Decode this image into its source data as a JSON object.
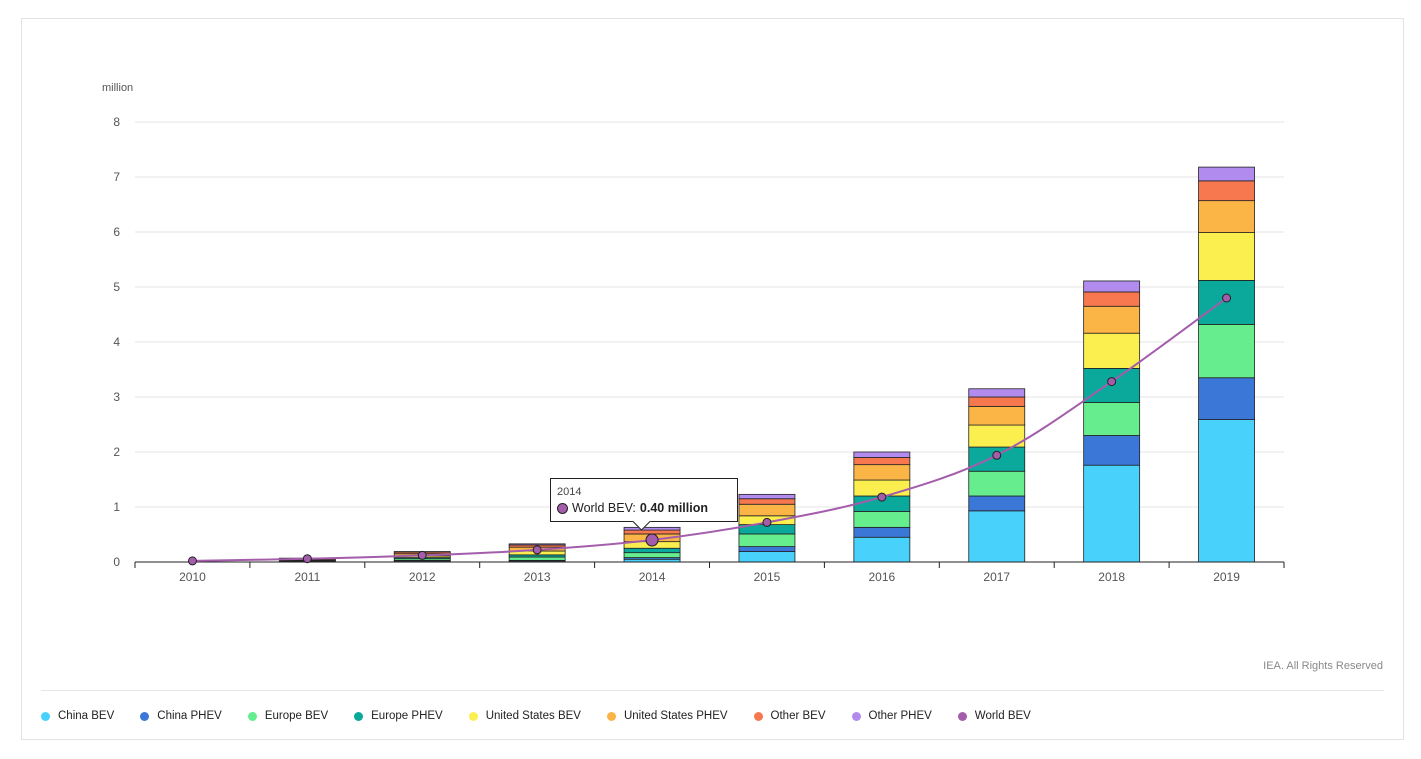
{
  "chart_data": {
    "type": "bar",
    "stacked": true,
    "ylabel": "million",
    "ylim": [
      0,
      8
    ],
    "yticks": [
      0,
      1,
      2,
      3,
      4,
      5,
      6,
      7,
      8
    ],
    "grid": true,
    "legend_position": "bottom",
    "categories": [
      "2010",
      "2011",
      "2012",
      "2013",
      "2014",
      "2015",
      "2016",
      "2017",
      "2018",
      "2019"
    ],
    "series": [
      {
        "name": "China BEV",
        "color": "#48d1fb",
        "values": [
          0.0,
          0.01,
          0.02,
          0.02,
          0.05,
          0.19,
          0.45,
          0.93,
          1.76,
          2.59
        ]
      },
      {
        "name": "China PHEV",
        "color": "#3a77d6",
        "values": [
          0.0,
          0.0,
          0.01,
          0.01,
          0.03,
          0.09,
          0.18,
          0.27,
          0.54,
          0.76
        ]
      },
      {
        "name": "Europe BEV",
        "color": "#66ee8e",
        "values": [
          0.0,
          0.01,
          0.03,
          0.06,
          0.09,
          0.23,
          0.29,
          0.45,
          0.6,
          0.97
        ]
      },
      {
        "name": "Europe PHEV",
        "color": "#0aa99b",
        "values": [
          0.0,
          0.0,
          0.02,
          0.04,
          0.08,
          0.17,
          0.28,
          0.44,
          0.62,
          0.8
        ]
      },
      {
        "name": "United States BEV",
        "color": "#fbef50",
        "values": [
          0.0,
          0.01,
          0.03,
          0.07,
          0.12,
          0.16,
          0.29,
          0.4,
          0.64,
          0.87
        ]
      },
      {
        "name": "United States PHEV",
        "color": "#fbb446",
        "values": [
          0.0,
          0.01,
          0.04,
          0.07,
          0.14,
          0.21,
          0.28,
          0.34,
          0.49,
          0.58
        ]
      },
      {
        "name": "Other BEV",
        "color": "#f7784e",
        "values": [
          0.0,
          0.02,
          0.03,
          0.04,
          0.07,
          0.1,
          0.13,
          0.17,
          0.26,
          0.36
        ]
      },
      {
        "name": "Other PHEV",
        "color": "#b18bee",
        "values": [
          0.0,
          0.01,
          0.01,
          0.02,
          0.05,
          0.08,
          0.1,
          0.15,
          0.2,
          0.25
        ]
      }
    ],
    "line_series": {
      "name": "World BEV",
      "color": "#a45dab",
      "values": [
        0.02,
        0.06,
        0.12,
        0.22,
        0.4,
        0.72,
        1.18,
        1.94,
        3.28,
        4.8
      ]
    }
  },
  "tooltip": {
    "year": "2014",
    "series_label": "World BEV:",
    "value_text": "0.40 million"
  },
  "credit": "IEA. All Rights Reserved",
  "legend": [
    {
      "label": "China BEV",
      "color": "#48d1fb"
    },
    {
      "label": "China PHEV",
      "color": "#3a77d6"
    },
    {
      "label": "Europe BEV",
      "color": "#66ee8e"
    },
    {
      "label": "Europe PHEV",
      "color": "#0aa99b"
    },
    {
      "label": "United States BEV",
      "color": "#fbef50"
    },
    {
      "label": "United States PHEV",
      "color": "#fbb446"
    },
    {
      "label": "Other BEV",
      "color": "#f7784e"
    },
    {
      "label": "Other PHEV",
      "color": "#b18bee"
    },
    {
      "label": "World BEV",
      "color": "#a45dab"
    }
  ]
}
